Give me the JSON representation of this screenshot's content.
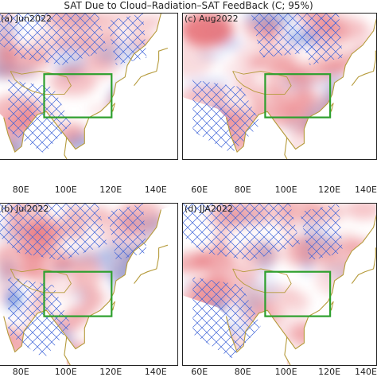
{
  "title": "SAT Due to Cloud–Radiation–SAT FeedBack (C; 95%)",
  "chart_data": [
    {
      "type": "heatmap",
      "label": "(a) Jun2022",
      "x_ticks": [
        "80E",
        "100E",
        "120E",
        "140E"
      ],
      "x_tick_values": [
        80,
        100,
        120,
        140
      ],
      "xlim": [
        70,
        150
      ],
      "box_lon": [
        90,
        120
      ],
      "box_lat": [
        20,
        35
      ],
      "colors": {
        "warm": "#e8737a",
        "cool": "#4a7fd6",
        "hatch": "#3d63d8",
        "box": "#2ea02e",
        "coast": "#b59a3a"
      }
    },
    {
      "type": "heatmap",
      "label": "(c) Aug2022",
      "x_ticks": [
        "60E",
        "80E",
        "100E",
        "120E",
        "140E"
      ],
      "x_tick_values": [
        60,
        80,
        100,
        120,
        140
      ],
      "xlim": [
        52,
        142
      ],
      "box_lon": [
        90,
        120
      ],
      "box_lat": [
        20,
        35
      ],
      "colors": {
        "warm": "#e8737a",
        "cool": "#4a7fd6",
        "hatch": "#3d63d8",
        "box": "#2ea02e",
        "coast": "#b59a3a"
      }
    },
    {
      "type": "heatmap",
      "label": "(b) Jul2022",
      "x_ticks": [
        "80E",
        "100E",
        "120E",
        "140E"
      ],
      "x_tick_values": [
        80,
        100,
        120,
        140
      ],
      "xlim": [
        70,
        150
      ],
      "box_lon": [
        90,
        120
      ],
      "box_lat": [
        20,
        35
      ],
      "colors": {
        "warm": "#e8737a",
        "cool": "#4a7fd6",
        "hatch": "#3d63d8",
        "box": "#2ea02e",
        "coast": "#b59a3a"
      }
    },
    {
      "type": "heatmap",
      "label": "(d) JJA2022",
      "x_ticks": [
        "60E",
        "80E",
        "100E",
        "120E",
        "140E"
      ],
      "x_tick_values": [
        60,
        80,
        100,
        120,
        140
      ],
      "xlim": [
        52,
        142
      ],
      "box_lon": [
        90,
        120
      ],
      "box_lat": [
        20,
        35
      ],
      "colors": {
        "warm": "#e8737a",
        "cool": "#4a7fd6",
        "hatch": "#3d63d8",
        "box": "#2ea02e",
        "coast": "#b59a3a"
      }
    }
  ]
}
